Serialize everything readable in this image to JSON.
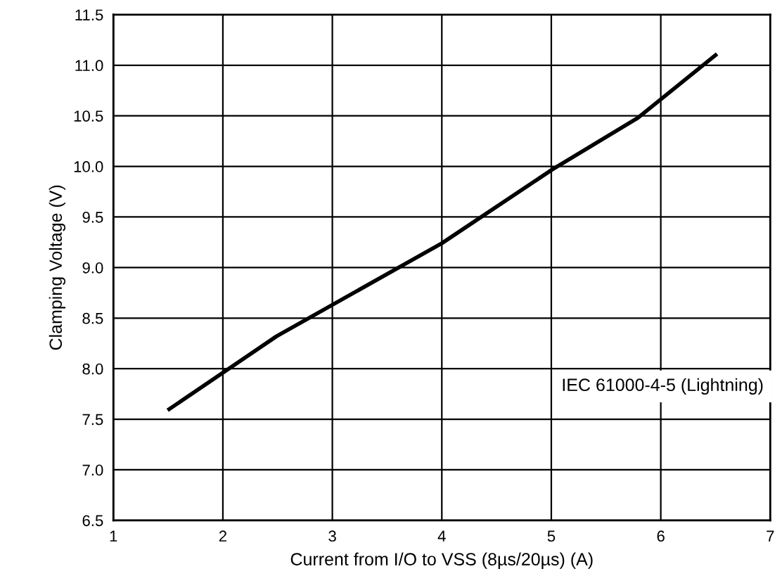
{
  "chart_data": {
    "type": "line",
    "xlabel": "Current from I/O to VSS (8µs/20µs) (A)",
    "ylabel": "Clamping Voltage (V)",
    "annotations": [
      "IEC 61000-4-5 (Lightning)"
    ],
    "x": [
      1.51,
      2.49,
      4.0,
      5.01,
      5.79,
      6.5
    ],
    "series": [
      {
        "color": "#000000",
        "values": [
          7.6,
          8.32,
          9.24,
          9.97,
          10.48,
          11.1
        ]
      }
    ],
    "xlim": [
      1,
      7
    ],
    "xticks": [
      1,
      2,
      3,
      4,
      5,
      6,
      7
    ],
    "ylim": [
      6.5,
      11.5
    ],
    "yticks": [
      {
        "value": 6.5,
        "label": "6.5"
      },
      {
        "value": 7,
        "label": "7.0"
      },
      {
        "value": 7.5,
        "label": "7.5"
      },
      {
        "value": 8,
        "label": "8.0"
      },
      {
        "value": 8.5,
        "label": "8.5"
      },
      {
        "value": 9,
        "label": "9.0"
      },
      {
        "value": 9.5,
        "label": "9.5"
      },
      {
        "value": 10,
        "label": "10.0"
      },
      {
        "value": 10.5,
        "label": "10.5"
      },
      {
        "value": 11,
        "label": "11.0"
      },
      {
        "value": 11.5,
        "label": "11.5"
      }
    ],
    "grid": true,
    "marker": "none",
    "line_style": "solid"
  }
}
